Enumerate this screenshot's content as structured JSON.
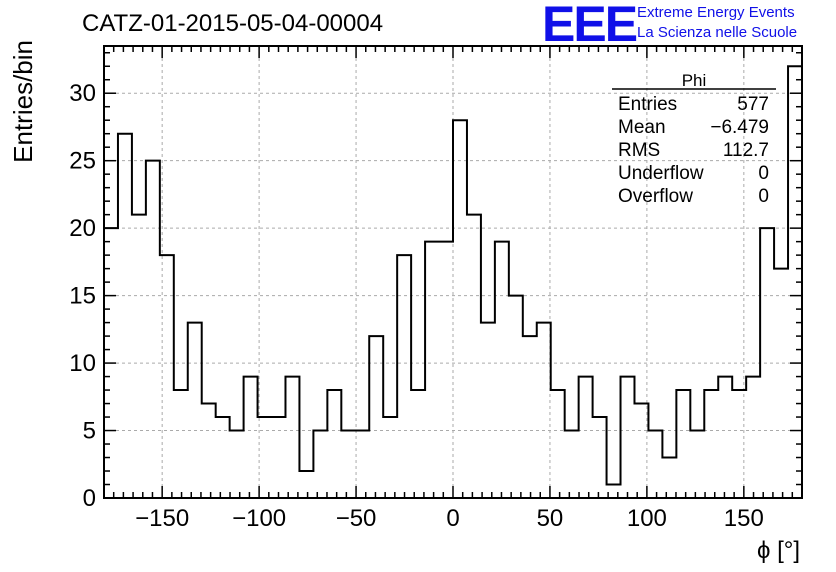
{
  "title": "CATZ-01-2015-05-04-00004",
  "logo": {
    "mark": "EEE",
    "line1": "Extreme Energy Events",
    "line2": "La Scienza nelle Scuole",
    "color": "#1010e8"
  },
  "stats_box": {
    "name": "Phi",
    "rows": [
      {
        "label": "Entries",
        "value": "577"
      },
      {
        "label": "Mean",
        "value": "−6.479"
      },
      {
        "label": "RMS",
        "value": "112.7"
      },
      {
        "label": "Underflow",
        "value": "0"
      },
      {
        "label": "Overflow",
        "value": "0"
      }
    ]
  },
  "chart_data": {
    "type": "histogram",
    "xlabel": "ϕ [°]",
    "ylabel": "Entries/bin",
    "xlim": [
      -180,
      180
    ],
    "ylim": [
      0,
      33.5
    ],
    "bin_width": 7.2,
    "x_ticks": [
      -150,
      -100,
      -50,
      0,
      50,
      100,
      150
    ],
    "x_tick_labels": [
      "−150",
      "−100",
      "−50",
      "0",
      "50",
      "100",
      "150"
    ],
    "y_ticks": [
      0,
      5,
      10,
      15,
      20,
      25,
      30
    ],
    "y_tick_labels": [
      "0",
      "5",
      "10",
      "15",
      "20",
      "25",
      "30"
    ],
    "grid": true,
    "values": [
      20,
      27,
      21,
      25,
      18,
      8,
      13,
      7,
      6,
      5,
      9,
      6,
      6,
      9,
      2,
      5,
      8,
      5,
      5,
      12,
      6,
      18,
      8,
      19,
      19,
      28,
      21,
      13,
      19,
      15,
      12,
      13,
      8,
      5,
      9,
      6,
      1,
      9,
      7,
      5,
      3,
      8,
      5,
      8,
      9,
      8,
      9,
      20,
      17,
      32
    ]
  }
}
